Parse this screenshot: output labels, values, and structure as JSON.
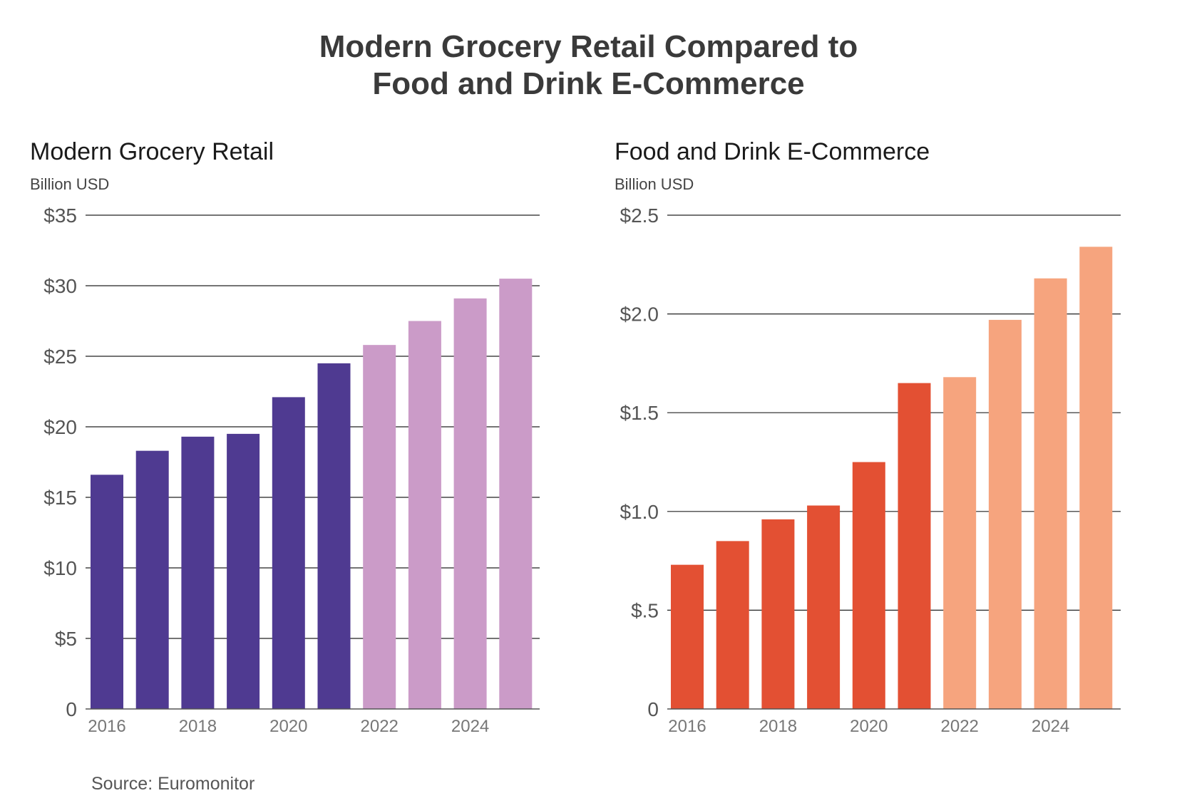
{
  "title": {
    "line1": "Modern Grocery Retail Compared to",
    "line2": "Food and Drink E-Commerce"
  },
  "source": "Source: Euromonitor",
  "chart_data": [
    {
      "type": "bar",
      "title": "Modern Grocery Retail",
      "unit_label": "Billion USD",
      "categories": [
        "2016",
        "2017",
        "2018",
        "2019",
        "2020",
        "2021",
        "2022",
        "2023",
        "2024",
        "2025"
      ],
      "x_tick_labels": [
        "2016",
        "2018",
        "2020",
        "2022",
        "2024"
      ],
      "values": [
        16.6,
        18.3,
        19.3,
        19.5,
        22.1,
        24.5,
        25.8,
        27.5,
        29.1,
        30.5
      ],
      "ylim": [
        0,
        35
      ],
      "yticks": [
        0,
        5,
        10,
        15,
        20,
        25,
        30,
        35
      ],
      "ytick_labels": [
        "0",
        "$5",
        "$10",
        "$15",
        "$20",
        "$25",
        "$30",
        "$35"
      ],
      "grid": true,
      "series_style": {
        "actual_color": "#4f3a91",
        "forecast_color": "#cb9bc8",
        "forecast_from_index": 6
      }
    },
    {
      "type": "bar",
      "title": "Food and Drink E-Commerce",
      "unit_label": "Billion USD",
      "categories": [
        "2016",
        "2017",
        "2018",
        "2019",
        "2020",
        "2021",
        "2022",
        "2023",
        "2024",
        "2025"
      ],
      "x_tick_labels": [
        "2016",
        "2018",
        "2020",
        "2022",
        "2024"
      ],
      "values": [
        0.73,
        0.85,
        0.96,
        1.03,
        1.25,
        1.65,
        1.68,
        1.97,
        2.18,
        2.34
      ],
      "ylim": [
        0,
        2.5
      ],
      "yticks": [
        0,
        0.5,
        1.0,
        1.5,
        2.0,
        2.5
      ],
      "ytick_labels": [
        "0",
        "$.5",
        "$1.0",
        "$1.5",
        "$2.0",
        "$2.5"
      ],
      "grid": true,
      "series_style": {
        "actual_color": "#e35033",
        "forecast_color": "#f6a47e",
        "forecast_from_index": 6
      }
    }
  ]
}
